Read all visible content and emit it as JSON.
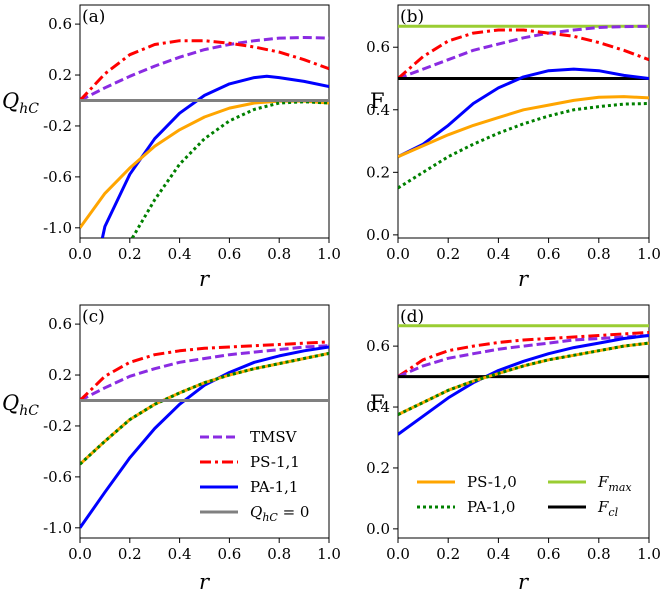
{
  "colors": {
    "TMSV": "#8a2be2",
    "PS11": "#ff0000",
    "PA11": "#0000ff",
    "PS10": "#ffa500",
    "PA10": "#008000",
    "zero": "#808080",
    "Fmax": "#9acd32",
    "Fcl": "#000000"
  },
  "legend_c": {
    "entries": [
      {
        "key": "TMSV",
        "label": "TMSV",
        "style": "dashed",
        "color_key": "TMSV"
      },
      {
        "key": "PS11",
        "label": "PS-1,1",
        "style": "dashdot",
        "color_key": "PS11"
      },
      {
        "key": "PA11",
        "label": "PA-1,1",
        "style": "solid",
        "color_key": "PA11"
      },
      {
        "key": "zero",
        "label": "Q_hC = 0",
        "main": "Q",
        "sub": "hC",
        "suffix": " = 0",
        "style": "solid",
        "color_key": "zero"
      }
    ]
  },
  "legend_d": {
    "entries": [
      {
        "key": "PS10",
        "label": "PS-1,0",
        "style": "solid",
        "color_key": "PS10"
      },
      {
        "key": "PA10",
        "label": "PA-1,0",
        "style": "dotted",
        "color_key": "PA10"
      },
      {
        "key": "Fmax",
        "label": "F_max",
        "main": "F",
        "sub": "max",
        "style": "solid",
        "color_key": "Fmax"
      },
      {
        "key": "Fcl",
        "label": "F_cl",
        "main": "F",
        "sub": "cl",
        "style": "solid",
        "color_key": "Fcl"
      }
    ]
  },
  "chart_data": [
    {
      "panel": "(a)",
      "type": "line",
      "xlabel": "r",
      "ylabel": "Q_hC",
      "xlim": [
        0.0,
        1.0
      ],
      "ylim": [
        -1.08,
        0.75
      ],
      "xticks": [
        "0.0",
        "0.2",
        "0.4",
        "0.6",
        "0.8",
        "1.0"
      ],
      "xtick_values": [
        0.0,
        0.2,
        0.4,
        0.6,
        0.8,
        1.0
      ],
      "yticks": [
        "0.6",
        "0.2",
        "-0.2",
        "-0.6",
        "-1.0"
      ],
      "ytick_values": [
        0.6,
        0.2,
        -0.2,
        -0.6,
        -1.0
      ],
      "series": [
        {
          "key": "TMSV",
          "x": [
            0,
            0.1,
            0.2,
            0.3,
            0.4,
            0.5,
            0.6,
            0.7,
            0.8,
            0.9,
            1.0
          ],
          "y": [
            0.0,
            0.1,
            0.19,
            0.27,
            0.34,
            0.4,
            0.44,
            0.47,
            0.49,
            0.495,
            0.49
          ]
        },
        {
          "key": "PS11",
          "x": [
            0,
            0.1,
            0.2,
            0.3,
            0.4,
            0.5,
            0.6,
            0.7,
            0.8,
            0.9,
            1.0
          ],
          "y": [
            0.0,
            0.21,
            0.36,
            0.44,
            0.47,
            0.47,
            0.45,
            0.42,
            0.38,
            0.32,
            0.25
          ]
        },
        {
          "key": "PA11",
          "x": [
            0.09,
            0.1,
            0.2,
            0.3,
            0.4,
            0.5,
            0.6,
            0.7,
            0.75,
            0.8,
            0.9,
            1.0
          ],
          "y": [
            -1.08,
            -0.99,
            -0.58,
            -0.3,
            -0.1,
            0.04,
            0.13,
            0.18,
            0.19,
            0.18,
            0.15,
            0.11
          ]
        },
        {
          "key": "PS10",
          "x": [
            0,
            0.1,
            0.2,
            0.3,
            0.4,
            0.5,
            0.6,
            0.7,
            0.8,
            0.9,
            1.0
          ],
          "y": [
            -1.0,
            -0.73,
            -0.53,
            -0.36,
            -0.23,
            -0.13,
            -0.06,
            -0.02,
            -0.005,
            -0.005,
            -0.02
          ]
        },
        {
          "key": "PA10",
          "x": [
            0.21,
            0.3,
            0.4,
            0.5,
            0.6,
            0.7,
            0.8,
            0.9,
            1.0
          ],
          "y": [
            -1.08,
            -0.78,
            -0.5,
            -0.3,
            -0.16,
            -0.07,
            -0.02,
            -0.01,
            -0.02
          ]
        },
        {
          "key": "zero",
          "x": [
            0,
            1.0
          ],
          "y": [
            0.0,
            0.0
          ]
        }
      ]
    },
    {
      "panel": "(b)",
      "type": "line",
      "xlabel": "r",
      "ylabel": "F",
      "xlim": [
        0.0,
        1.0
      ],
      "ylim": [
        -0.01,
        0.735
      ],
      "xticks": [
        "0.0",
        "0.2",
        "0.4",
        "0.6",
        "0.8",
        "1.0"
      ],
      "xtick_values": [
        0.0,
        0.2,
        0.4,
        0.6,
        0.8,
        1.0
      ],
      "yticks": [
        "0.6",
        "0.4",
        "0.2",
        "0.0"
      ],
      "ytick_values": [
        0.6,
        0.4,
        0.2,
        0.0
      ],
      "series": [
        {
          "key": "Fmax",
          "x": [
            0,
            1.0
          ],
          "y": [
            0.667,
            0.667
          ]
        },
        {
          "key": "TMSV",
          "x": [
            0,
            0.1,
            0.2,
            0.3,
            0.4,
            0.5,
            0.6,
            0.7,
            0.8,
            0.9,
            1.0
          ],
          "y": [
            0.5,
            0.53,
            0.56,
            0.59,
            0.61,
            0.63,
            0.645,
            0.655,
            0.663,
            0.666,
            0.667
          ]
        },
        {
          "key": "PS11",
          "x": [
            0,
            0.1,
            0.2,
            0.3,
            0.4,
            0.5,
            0.6,
            0.7,
            0.8,
            0.9,
            1.0
          ],
          "y": [
            0.5,
            0.57,
            0.62,
            0.645,
            0.655,
            0.655,
            0.645,
            0.635,
            0.615,
            0.59,
            0.56
          ]
        },
        {
          "key": "Fcl",
          "x": [
            0,
            1.0
          ],
          "y": [
            0.5,
            0.5
          ]
        },
        {
          "key": "PA11",
          "x": [
            0,
            0.1,
            0.2,
            0.3,
            0.4,
            0.5,
            0.6,
            0.7,
            0.8,
            0.9,
            1.0
          ],
          "y": [
            0.25,
            0.29,
            0.35,
            0.42,
            0.47,
            0.505,
            0.525,
            0.53,
            0.525,
            0.51,
            0.5
          ]
        },
        {
          "key": "PS10",
          "x": [
            0,
            0.1,
            0.2,
            0.3,
            0.4,
            0.5,
            0.6,
            0.7,
            0.8,
            0.9,
            1.0
          ],
          "y": [
            0.25,
            0.285,
            0.32,
            0.35,
            0.375,
            0.4,
            0.415,
            0.43,
            0.44,
            0.442,
            0.438
          ]
        },
        {
          "key": "PA10",
          "x": [
            0,
            0.1,
            0.2,
            0.3,
            0.4,
            0.5,
            0.6,
            0.7,
            0.8,
            0.9,
            1.0
          ],
          "y": [
            0.15,
            0.2,
            0.25,
            0.29,
            0.325,
            0.355,
            0.38,
            0.4,
            0.41,
            0.418,
            0.42
          ]
        }
      ]
    },
    {
      "panel": "(c)",
      "type": "line",
      "xlabel": "r",
      "ylabel": "Q_hC",
      "xlim": [
        0.0,
        1.0
      ],
      "ylim": [
        -1.08,
        0.75
      ],
      "xticks": [
        "0.0",
        "0.2",
        "0.4",
        "0.6",
        "0.8",
        "1.0"
      ],
      "xtick_values": [
        0.0,
        0.2,
        0.4,
        0.6,
        0.8,
        1.0
      ],
      "yticks": [
        "0.6",
        "0.2",
        "-0.2",
        "-0.6",
        "-1.0"
      ],
      "ytick_values": [
        0.6,
        0.2,
        -0.2,
        -0.6,
        -1.0
      ],
      "series": [
        {
          "key": "TMSV",
          "x": [
            0,
            0.1,
            0.2,
            0.3,
            0.4,
            0.5,
            0.6,
            0.7,
            0.8,
            0.9,
            1.0
          ],
          "y": [
            0.0,
            0.1,
            0.19,
            0.25,
            0.3,
            0.33,
            0.36,
            0.38,
            0.4,
            0.42,
            0.43
          ]
        },
        {
          "key": "PS11",
          "x": [
            0,
            0.1,
            0.2,
            0.3,
            0.4,
            0.5,
            0.6,
            0.7,
            0.8,
            0.9,
            1.0
          ],
          "y": [
            0.0,
            0.19,
            0.3,
            0.36,
            0.39,
            0.41,
            0.42,
            0.43,
            0.44,
            0.45,
            0.46
          ]
        },
        {
          "key": "PA11",
          "x": [
            0,
            0.1,
            0.2,
            0.3,
            0.4,
            0.5,
            0.6,
            0.7,
            0.8,
            0.9,
            1.0
          ],
          "y": [
            -1.0,
            -0.72,
            -0.45,
            -0.22,
            -0.03,
            0.12,
            0.22,
            0.3,
            0.35,
            0.39,
            0.42
          ]
        },
        {
          "key": "PS10",
          "x": [
            0,
            0.1,
            0.2,
            0.3,
            0.4,
            0.5,
            0.6,
            0.7,
            0.8,
            0.9,
            1.0
          ],
          "y": [
            -0.5,
            -0.32,
            -0.15,
            -0.03,
            0.06,
            0.14,
            0.2,
            0.25,
            0.29,
            0.33,
            0.37
          ]
        },
        {
          "key": "PA10",
          "x": [
            0,
            0.1,
            0.2,
            0.3,
            0.4,
            0.5,
            0.6,
            0.7,
            0.8,
            0.9,
            1.0
          ],
          "y": [
            -0.5,
            -0.32,
            -0.15,
            -0.03,
            0.06,
            0.14,
            0.2,
            0.25,
            0.29,
            0.33,
            0.37
          ]
        },
        {
          "key": "zero",
          "x": [
            0,
            1.0
          ],
          "y": [
            0.0,
            0.0
          ]
        }
      ]
    },
    {
      "panel": "(d)",
      "type": "line",
      "xlabel": "r",
      "ylabel": "F",
      "xlim": [
        0.0,
        1.0
      ],
      "ylim": [
        -0.03,
        0.735
      ],
      "xticks": [
        "0.0",
        "0.2",
        "0.4",
        "0.6",
        "0.8",
        "1.0"
      ],
      "xtick_values": [
        0.0,
        0.2,
        0.4,
        0.6,
        0.8,
        1.0
      ],
      "yticks": [
        "0.6",
        "0.4",
        "0.2",
        "0.0"
      ],
      "ytick_values": [
        0.6,
        0.4,
        0.2,
        0.0
      ],
      "series": [
        {
          "key": "Fmax",
          "x": [
            0,
            1.0
          ],
          "y": [
            0.667,
            0.667
          ]
        },
        {
          "key": "PS11",
          "x": [
            0,
            0.1,
            0.2,
            0.3,
            0.4,
            0.5,
            0.6,
            0.7,
            0.8,
            0.9,
            1.0
          ],
          "y": [
            0.5,
            0.555,
            0.585,
            0.6,
            0.612,
            0.62,
            0.625,
            0.63,
            0.635,
            0.64,
            0.645
          ]
        },
        {
          "key": "TMSV",
          "x": [
            0,
            0.1,
            0.2,
            0.3,
            0.4,
            0.5,
            0.6,
            0.7,
            0.8,
            0.9,
            1.0
          ],
          "y": [
            0.5,
            0.535,
            0.56,
            0.575,
            0.59,
            0.6,
            0.61,
            0.62,
            0.625,
            0.63,
            0.635
          ]
        },
        {
          "key": "PA11",
          "x": [
            0,
            0.1,
            0.2,
            0.3,
            0.4,
            0.5,
            0.6,
            0.7,
            0.8,
            0.9,
            1.0
          ],
          "y": [
            0.31,
            0.37,
            0.43,
            0.48,
            0.52,
            0.55,
            0.575,
            0.595,
            0.61,
            0.625,
            0.635
          ]
        },
        {
          "key": "Fcl",
          "x": [
            0,
            1.0
          ],
          "y": [
            0.5,
            0.5
          ]
        },
        {
          "key": "PS10",
          "x": [
            0,
            0.1,
            0.2,
            0.3,
            0.4,
            0.5,
            0.6,
            0.7,
            0.8,
            0.9,
            1.0
          ],
          "y": [
            0.375,
            0.415,
            0.455,
            0.485,
            0.51,
            0.535,
            0.555,
            0.57,
            0.585,
            0.6,
            0.61
          ]
        },
        {
          "key": "PA10",
          "x": [
            0,
            0.1,
            0.2,
            0.3,
            0.4,
            0.5,
            0.6,
            0.7,
            0.8,
            0.9,
            1.0
          ],
          "y": [
            0.375,
            0.415,
            0.455,
            0.485,
            0.51,
            0.535,
            0.555,
            0.57,
            0.585,
            0.6,
            0.61
          ]
        }
      ]
    }
  ]
}
